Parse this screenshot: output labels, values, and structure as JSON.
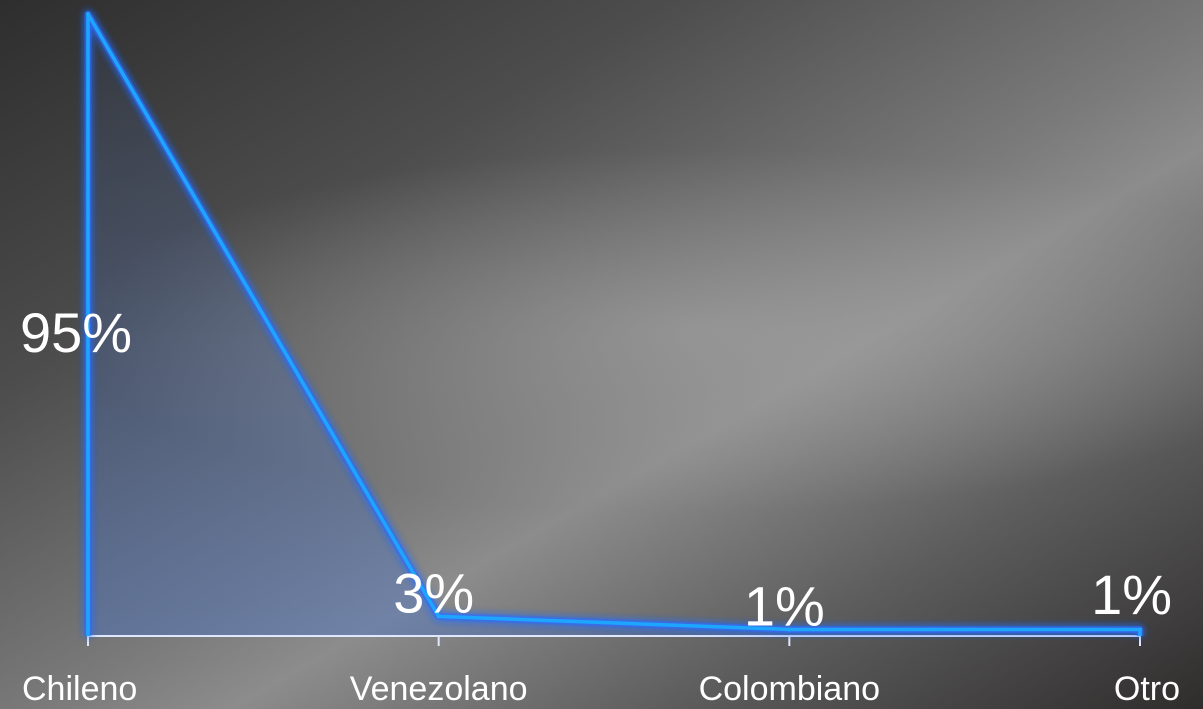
{
  "chart_data": {
    "type": "area",
    "categories": [
      "Chileno",
      "Venezolano",
      "Colombiano",
      "Otro"
    ],
    "series": [
      {
        "values": [
          95,
          3,
          1,
          1
        ]
      }
    ],
    "data_labels": [
      "95%",
      "3%",
      "1%",
      "1%"
    ],
    "ylim": [
      0,
      95
    ],
    "grid": false,
    "colors": {
      "line": "#1ea6ff",
      "glow": "#2b6bff",
      "fill": "#3b6fd6",
      "axis": "#dfe8ff",
      "text": "#ffffff"
    }
  }
}
